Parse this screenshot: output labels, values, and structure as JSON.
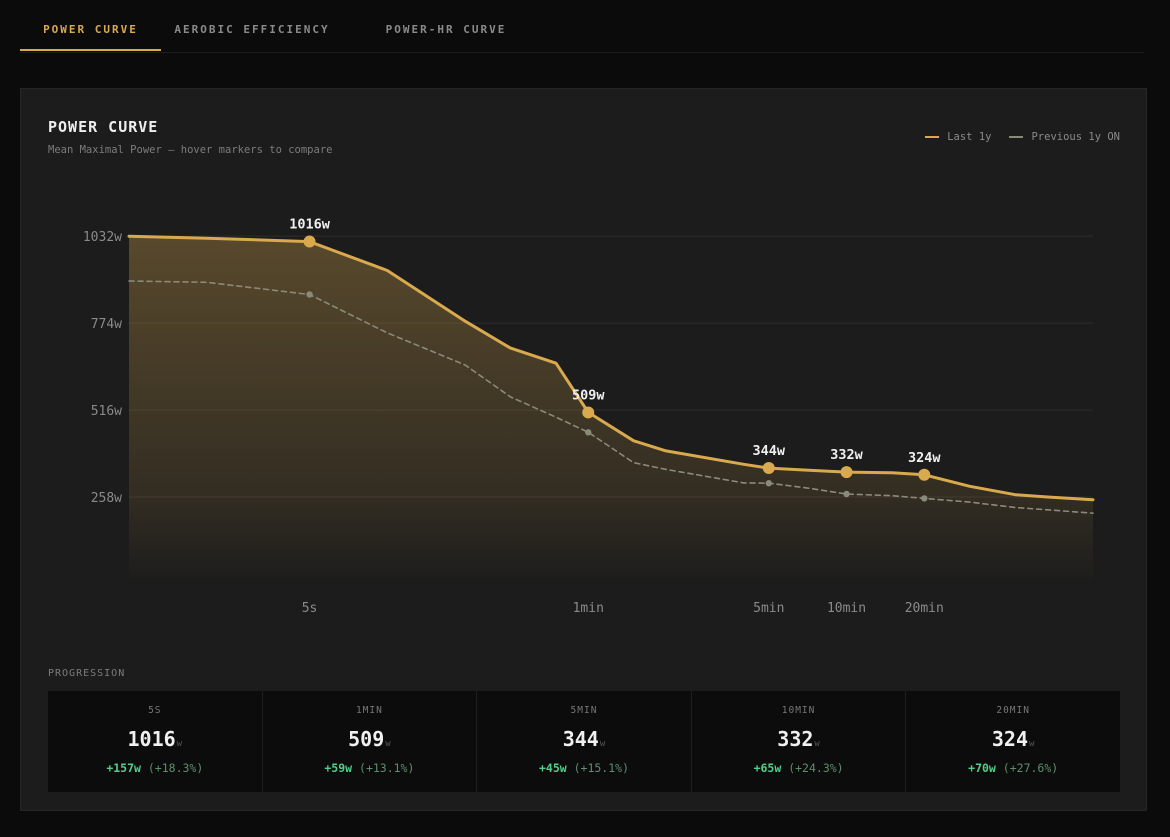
{
  "tabs": [
    {
      "label": "POWER CURVE",
      "active": true
    },
    {
      "label": "AEROBIC EFFICIENCY",
      "active": false
    },
    {
      "label": "POWER-HR CURVE",
      "active": false
    }
  ],
  "panel": {
    "title": "POWER CURVE",
    "subtitle": "Mean Maximal Power — hover markers to compare",
    "legend": [
      {
        "label": "Last 1y",
        "color": "#d9a94e"
      },
      {
        "label": "Previous 1y ON",
        "color": "#8a8a7a"
      }
    ]
  },
  "chart_data": {
    "type": "line",
    "title": "POWER CURVE",
    "x_scale": "log",
    "xlabel": "",
    "ylabel": "",
    "y_unit": "w",
    "y_ticks": [
      258,
      516,
      774,
      1032
    ],
    "x_ticks": [
      "5s",
      "1min",
      "5min",
      "10min",
      "20min"
    ],
    "grid": true,
    "legend_position": "top-right",
    "series": [
      {
        "name": "Last 1y",
        "color": "#d9a94e",
        "style": "solid",
        "fill": true,
        "x_seconds": [
          1,
          2,
          5,
          10,
          20,
          30,
          45,
          60,
          90,
          120,
          240,
          300,
          420,
          600,
          900,
          1200,
          1800,
          2700,
          3600,
          5400
        ],
        "values": [
          1032,
          1026,
          1016,
          930,
          780,
          700,
          655,
          509,
          425,
          395,
          355,
          344,
          338,
          332,
          330,
          324,
          290,
          265,
          258,
          250
        ]
      },
      {
        "name": "Previous 1y",
        "color": "#8a8a7a",
        "style": "dashed",
        "fill": false,
        "x_seconds": [
          1,
          2,
          5,
          10,
          20,
          30,
          45,
          60,
          90,
          120,
          240,
          300,
          420,
          600,
          900,
          1200,
          1800,
          2700,
          3600,
          5400
        ],
        "values": [
          899,
          895,
          859,
          745,
          650,
          555,
          495,
          450,
          360,
          340,
          300,
          299,
          285,
          267,
          262,
          254,
          243,
          227,
          220,
          210
        ]
      }
    ],
    "markers": [
      {
        "x_seconds": 5,
        "label": "1016w",
        "current": 1016,
        "previous": 859
      },
      {
        "x_seconds": 60,
        "label": "509w",
        "current": 509,
        "previous": 450
      },
      {
        "x_seconds": 300,
        "label": "344w",
        "current": 344,
        "previous": 299
      },
      {
        "x_seconds": 600,
        "label": "332w",
        "current": 332,
        "previous": 267
      },
      {
        "x_seconds": 1200,
        "label": "324w",
        "current": 324,
        "previous": 254
      }
    ]
  },
  "progression": {
    "label": "PROGRESSION",
    "unit": "w",
    "cards": [
      {
        "label": "5S",
        "value": "1016",
        "delta": "+157w",
        "pct": "(+18.3%)"
      },
      {
        "label": "1MIN",
        "value": "509",
        "delta": "+59w",
        "pct": "(+13.1%)"
      },
      {
        "label": "5MIN",
        "value": "344",
        "delta": "+45w",
        "pct": "(+15.1%)"
      },
      {
        "label": "10MIN",
        "value": "332",
        "delta": "+65w",
        "pct": "(+24.3%)"
      },
      {
        "label": "20MIN",
        "value": "324",
        "delta": "+70w",
        "pct": "(+27.6%)"
      }
    ]
  }
}
